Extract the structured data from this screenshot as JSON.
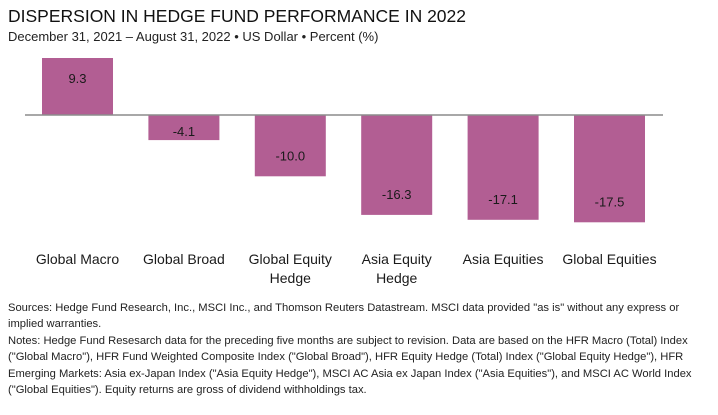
{
  "header": {
    "title": "DISPERSION IN HEDGE FUND PERFORMANCE IN 2022",
    "subtitle": "December 31, 2021 – August 31, 2022 • US Dollar • Percent (%)"
  },
  "chart_data": {
    "type": "bar",
    "title": "DISPERSION IN HEDGE FUND PERFORMANCE IN 2022",
    "subtitle": "December 31, 2021 – August 31, 2022 • US Dollar • Percent (%)",
    "categories": [
      [
        "Global Macro"
      ],
      [
        "Global Broad"
      ],
      [
        "Global Equity",
        "Hedge"
      ],
      [
        "Asia Equity",
        "Hedge"
      ],
      [
        "Asia Equities"
      ],
      [
        "Global Equities"
      ]
    ],
    "values": [
      9.3,
      -4.1,
      -10.0,
      -16.3,
      -17.1,
      -17.5
    ],
    "labels": [
      "9.3",
      "-4.1",
      "-10.0",
      "-16.3",
      "-17.1",
      "-17.5"
    ],
    "xlabel": "",
    "ylabel": "Percent (%)",
    "ylim": [
      -17.5,
      9.3
    ],
    "grid": false,
    "legend": "none",
    "bar_color": "#B25E93",
    "axis_color": "#8c8c8c"
  },
  "footnotes": {
    "sources": "Sources: Hedge Fund Research, Inc., MSCI Inc., and Thomson Reuters Datastream. MSCI data provided \"as is\" without any express or implied warranties.",
    "notes": "Notes: Hedge Fund Resesarch data for the preceding five months are subject to revision. Data are based on the HFR Macro (Total) Index (\"Global Macro\"), HFR Fund Weighted Composite Index (\"Global Broad\"), HFR Equity Hedge (Total) Index (\"Global Equity Hedge\"), HFR Emerging Markets: Asia ex-Japan Index (\"Asia Equity Hedge\"), MSCI AC Asia ex Japan Index (\"Asia Equities\"), and MSCI AC World Index (\"Global Equities\"). Equity returns are gross of dividend withholdings tax."
  }
}
